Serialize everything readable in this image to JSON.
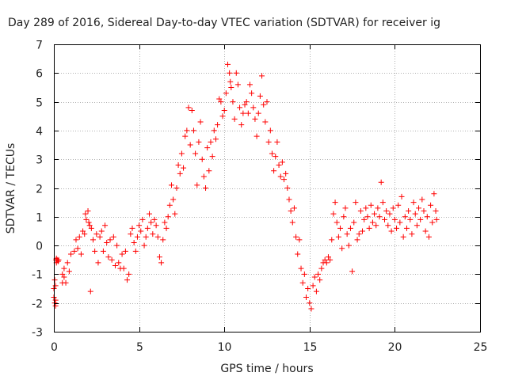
{
  "chart_data": {
    "type": "scatter",
    "title": "Day 289 of 2016, Sidereal Day-to-day VTEC variation (SDTVAR) for receiver ig",
    "xlabel": "GPS time / hours",
    "ylabel": "SDTVAR / TECUs",
    "xlim": [
      0,
      25
    ],
    "ylim": [
      -3,
      7
    ],
    "xticks": [
      0,
      5,
      10,
      15,
      20,
      25
    ],
    "yticks": [
      -3,
      -2,
      -1,
      0,
      1,
      2,
      3,
      4,
      5,
      6,
      7
    ],
    "grid": true,
    "marker": "+",
    "series": [
      {
        "name": "SDTVAR",
        "color": "#ff0000",
        "note": "profile of the plotted point cloud (hour, TECU) read off the figure; each x-range is densely filled with '+' markers spreading about the profile",
        "profile": [
          [
            0.0,
            -1.5
          ],
          [
            0.1,
            -2.0
          ],
          [
            0.15,
            -0.5
          ],
          [
            0.3,
            -0.5
          ],
          [
            0.6,
            -1.2
          ],
          [
            0.9,
            -0.7
          ],
          [
            1.2,
            -0.1
          ],
          [
            1.5,
            0.3
          ],
          [
            1.9,
            0.9
          ],
          [
            2.1,
            0.8
          ],
          [
            2.4,
            0.2
          ],
          [
            2.8,
            0.0
          ],
          [
            3.2,
            -0.2
          ],
          [
            3.6,
            -0.5
          ],
          [
            4.0,
            -0.7
          ],
          [
            4.4,
            -1.2
          ],
          [
            4.8,
            0.2
          ],
          [
            5.2,
            0.6
          ],
          [
            5.6,
            0.8
          ],
          [
            6.0,
            0.5
          ],
          [
            6.3,
            -0.4
          ],
          [
            6.6,
            0.6
          ],
          [
            7.0,
            1.5
          ],
          [
            7.3,
            2.5
          ],
          [
            7.6,
            3.0
          ],
          [
            7.9,
            4.2
          ],
          [
            8.2,
            4.3
          ],
          [
            8.5,
            3.5
          ],
          [
            8.8,
            2.9
          ],
          [
            9.2,
            3.2
          ],
          [
            9.5,
            3.8
          ],
          [
            9.8,
            4.5
          ],
          [
            10.2,
            5.0
          ],
          [
            10.4,
            5.8
          ],
          [
            10.7,
            5.0
          ],
          [
            11.0,
            4.6
          ],
          [
            11.3,
            4.8
          ],
          [
            11.6,
            5.1
          ],
          [
            11.9,
            4.5
          ],
          [
            12.2,
            5.0
          ],
          [
            12.5,
            4.2
          ],
          [
            12.8,
            3.5
          ],
          [
            13.1,
            3.0
          ],
          [
            13.5,
            2.7
          ],
          [
            13.8,
            2.0
          ],
          [
            14.1,
            1.1
          ],
          [
            14.4,
            0.0
          ],
          [
            14.7,
            -1.0
          ],
          [
            15.0,
            -1.6
          ],
          [
            15.3,
            -1.3
          ],
          [
            15.6,
            -1.0
          ],
          [
            16.0,
            -0.6
          ],
          [
            16.4,
            0.5
          ],
          [
            16.8,
            0.6
          ],
          [
            17.2,
            0.9
          ],
          [
            17.6,
            0.3
          ],
          [
            18.0,
            0.5
          ],
          [
            18.4,
            0.8
          ],
          [
            18.8,
            1.0
          ],
          [
            19.2,
            1.3
          ],
          [
            19.6,
            1.0
          ],
          [
            20.0,
            0.8
          ],
          [
            20.4,
            0.9
          ],
          [
            20.8,
            0.8
          ],
          [
            21.2,
            0.9
          ],
          [
            21.6,
            0.8
          ],
          [
            22.0,
            0.9
          ],
          [
            22.3,
            1.3
          ]
        ],
        "points": [
          [
            0.0,
            -1.5
          ],
          [
            0.0,
            -1.8
          ],
          [
            0.05,
            -1.2
          ],
          [
            0.05,
            -2.0
          ],
          [
            0.1,
            -1.9
          ],
          [
            0.1,
            -2.1
          ],
          [
            0.1,
            -1.4
          ],
          [
            0.12,
            -0.5
          ],
          [
            0.15,
            -0.6
          ],
          [
            0.15,
            -0.45
          ],
          [
            0.2,
            -0.5
          ],
          [
            0.25,
            -0.55
          ],
          [
            0.28,
            -0.5
          ],
          [
            0.5,
            -1.0
          ],
          [
            0.5,
            -1.3
          ],
          [
            0.6,
            -0.8
          ],
          [
            0.6,
            -1.1
          ],
          [
            0.7,
            -1.3
          ],
          [
            0.8,
            -0.6
          ],
          [
            0.9,
            -0.9
          ],
          [
            1.0,
            -0.3
          ],
          [
            1.2,
            -0.2
          ],
          [
            1.3,
            0.2
          ],
          [
            1.4,
            -0.1
          ],
          [
            1.5,
            0.3
          ],
          [
            1.6,
            -0.3
          ],
          [
            1.7,
            0.5
          ],
          [
            1.8,
            0.4
          ],
          [
            1.85,
            1.1
          ],
          [
            1.9,
            0.9
          ],
          [
            2.0,
            1.2
          ],
          [
            2.05,
            0.8
          ],
          [
            2.1,
            0.7
          ],
          [
            2.15,
            -1.6
          ],
          [
            2.2,
            0.6
          ],
          [
            2.3,
            0.2
          ],
          [
            2.4,
            -0.2
          ],
          [
            2.5,
            0.4
          ],
          [
            2.6,
            -0.6
          ],
          [
            2.7,
            0.3
          ],
          [
            2.8,
            0.5
          ],
          [
            2.9,
            -0.2
          ],
          [
            3.0,
            0.7
          ],
          [
            3.1,
            0.1
          ],
          [
            3.2,
            -0.4
          ],
          [
            3.3,
            0.2
          ],
          [
            3.4,
            -0.5
          ],
          [
            3.5,
            0.3
          ],
          [
            3.6,
            -0.7
          ],
          [
            3.7,
            0.0
          ],
          [
            3.8,
            -0.6
          ],
          [
            3.9,
            -0.8
          ],
          [
            4.0,
            -0.3
          ],
          [
            4.1,
            -0.8
          ],
          [
            4.2,
            -0.2
          ],
          [
            4.3,
            -1.2
          ],
          [
            4.4,
            -1.0
          ],
          [
            4.5,
            0.4
          ],
          [
            4.6,
            0.6
          ],
          [
            4.7,
            0.1
          ],
          [
            4.8,
            -0.2
          ],
          [
            4.9,
            0.3
          ],
          [
            5.0,
            0.7
          ],
          [
            5.1,
            0.5
          ],
          [
            5.2,
            0.9
          ],
          [
            5.3,
            0.0
          ],
          [
            5.4,
            0.3
          ],
          [
            5.5,
            0.6
          ],
          [
            5.6,
            1.1
          ],
          [
            5.7,
            0.8
          ],
          [
            5.8,
            0.4
          ],
          [
            5.9,
            0.9
          ],
          [
            6.0,
            0.7
          ],
          [
            6.1,
            0.3
          ],
          [
            6.2,
            -0.4
          ],
          [
            6.3,
            -0.6
          ],
          [
            6.4,
            0.2
          ],
          [
            6.5,
            0.8
          ],
          [
            6.6,
            0.6
          ],
          [
            6.7,
            1.0
          ],
          [
            6.8,
            1.4
          ],
          [
            6.9,
            2.1
          ],
          [
            7.0,
            1.6
          ],
          [
            7.1,
            1.1
          ],
          [
            7.2,
            2.0
          ],
          [
            7.3,
            2.8
          ],
          [
            7.4,
            2.5
          ],
          [
            7.5,
            3.2
          ],
          [
            7.6,
            2.7
          ],
          [
            7.7,
            3.8
          ],
          [
            7.8,
            4.0
          ],
          [
            7.9,
            4.8
          ],
          [
            8.0,
            3.5
          ],
          [
            8.1,
            4.7
          ],
          [
            8.2,
            4.0
          ],
          [
            8.3,
            3.2
          ],
          [
            8.4,
            2.1
          ],
          [
            8.5,
            3.6
          ],
          [
            8.6,
            4.3
          ],
          [
            8.7,
            3.0
          ],
          [
            8.8,
            2.4
          ],
          [
            8.9,
            2.0
          ],
          [
            9.0,
            3.4
          ],
          [
            9.1,
            2.6
          ],
          [
            9.2,
            3.6
          ],
          [
            9.3,
            3.1
          ],
          [
            9.4,
            4.0
          ],
          [
            9.5,
            3.7
          ],
          [
            9.6,
            4.2
          ],
          [
            9.7,
            5.1
          ],
          [
            9.8,
            5.0
          ],
          [
            9.9,
            4.5
          ],
          [
            10.0,
            4.7
          ],
          [
            10.1,
            5.3
          ],
          [
            10.2,
            6.3
          ],
          [
            10.3,
            6.0
          ],
          [
            10.35,
            5.7
          ],
          [
            10.4,
            5.5
          ],
          [
            10.5,
            5.0
          ],
          [
            10.6,
            4.4
          ],
          [
            10.7,
            6.0
          ],
          [
            10.8,
            5.6
          ],
          [
            10.9,
            4.8
          ],
          [
            11.0,
            4.2
          ],
          [
            11.1,
            4.6
          ],
          [
            11.2,
            4.9
          ],
          [
            11.3,
            5.0
          ],
          [
            11.4,
            4.6
          ],
          [
            11.5,
            5.6
          ],
          [
            11.6,
            5.3
          ],
          [
            11.7,
            4.8
          ],
          [
            11.8,
            4.4
          ],
          [
            11.9,
            3.8
          ],
          [
            12.0,
            4.6
          ],
          [
            12.1,
            5.2
          ],
          [
            12.2,
            5.9
          ],
          [
            12.3,
            4.9
          ],
          [
            12.4,
            4.3
          ],
          [
            12.5,
            5.0
          ],
          [
            12.6,
            3.6
          ],
          [
            12.7,
            4.0
          ],
          [
            12.8,
            3.2
          ],
          [
            12.9,
            2.6
          ],
          [
            13.0,
            3.1
          ],
          [
            13.1,
            3.6
          ],
          [
            13.2,
            2.8
          ],
          [
            13.3,
            2.4
          ],
          [
            13.4,
            2.9
          ],
          [
            13.5,
            2.3
          ],
          [
            13.6,
            2.5
          ],
          [
            13.7,
            2.0
          ],
          [
            13.8,
            1.6
          ],
          [
            13.9,
            1.2
          ],
          [
            14.0,
            0.8
          ],
          [
            14.1,
            1.3
          ],
          [
            14.2,
            0.3
          ],
          [
            14.3,
            -0.3
          ],
          [
            14.4,
            0.2
          ],
          [
            14.5,
            -0.8
          ],
          [
            14.6,
            -1.3
          ],
          [
            14.7,
            -1.0
          ],
          [
            14.8,
            -1.8
          ],
          [
            14.9,
            -1.5
          ],
          [
            15.0,
            -2.0
          ],
          [
            15.1,
            -2.2
          ],
          [
            15.2,
            -1.4
          ],
          [
            15.3,
            -1.1
          ],
          [
            15.4,
            -1.6
          ],
          [
            15.5,
            -1.0
          ],
          [
            15.6,
            -1.2
          ],
          [
            15.7,
            -0.8
          ],
          [
            15.8,
            -0.6
          ],
          [
            15.9,
            -0.5
          ],
          [
            16.0,
            -0.6
          ],
          [
            16.1,
            -0.4
          ],
          [
            16.2,
            -0.5
          ],
          [
            16.3,
            0.2
          ],
          [
            16.4,
            1.1
          ],
          [
            16.5,
            1.5
          ],
          [
            16.6,
            0.8
          ],
          [
            16.7,
            0.3
          ],
          [
            16.8,
            0.6
          ],
          [
            16.9,
            -0.1
          ],
          [
            17.0,
            1.0
          ],
          [
            17.1,
            1.3
          ],
          [
            17.2,
            0.4
          ],
          [
            17.3,
            0.0
          ],
          [
            17.4,
            0.6
          ],
          [
            17.5,
            -0.9
          ],
          [
            17.6,
            0.8
          ],
          [
            17.7,
            1.5
          ],
          [
            17.8,
            0.2
          ],
          [
            17.9,
            0.4
          ],
          [
            18.0,
            1.2
          ],
          [
            18.1,
            0.5
          ],
          [
            18.2,
            0.9
          ],
          [
            18.3,
            1.3
          ],
          [
            18.4,
            1.0
          ],
          [
            18.5,
            0.6
          ],
          [
            18.6,
            1.4
          ],
          [
            18.7,
            0.8
          ],
          [
            18.8,
            1.1
          ],
          [
            18.9,
            0.7
          ],
          [
            19.0,
            1.3
          ],
          [
            19.1,
            1.0
          ],
          [
            19.2,
            2.2
          ],
          [
            19.3,
            1.5
          ],
          [
            19.4,
            0.9
          ],
          [
            19.5,
            1.2
          ],
          [
            19.6,
            0.7
          ],
          [
            19.7,
            1.1
          ],
          [
            19.8,
            0.5
          ],
          [
            19.9,
            1.3
          ],
          [
            20.0,
            0.9
          ],
          [
            20.1,
            0.6
          ],
          [
            20.2,
            1.4
          ],
          [
            20.3,
            0.8
          ],
          [
            20.4,
            1.7
          ],
          [
            20.5,
            0.3
          ],
          [
            20.6,
            1.0
          ],
          [
            20.7,
            0.6
          ],
          [
            20.8,
            1.2
          ],
          [
            20.9,
            0.9
          ],
          [
            21.0,
            0.4
          ],
          [
            21.1,
            1.5
          ],
          [
            21.2,
            1.1
          ],
          [
            21.3,
            0.7
          ],
          [
            21.4,
            1.3
          ],
          [
            21.5,
            0.9
          ],
          [
            21.6,
            1.6
          ],
          [
            21.7,
            1.2
          ],
          [
            21.8,
            0.5
          ],
          [
            21.9,
            1.0
          ],
          [
            22.0,
            0.3
          ],
          [
            22.1,
            1.4
          ],
          [
            22.2,
            0.8
          ],
          [
            22.3,
            1.8
          ],
          [
            22.4,
            1.2
          ],
          [
            22.45,
            0.9
          ]
        ]
      }
    ]
  }
}
